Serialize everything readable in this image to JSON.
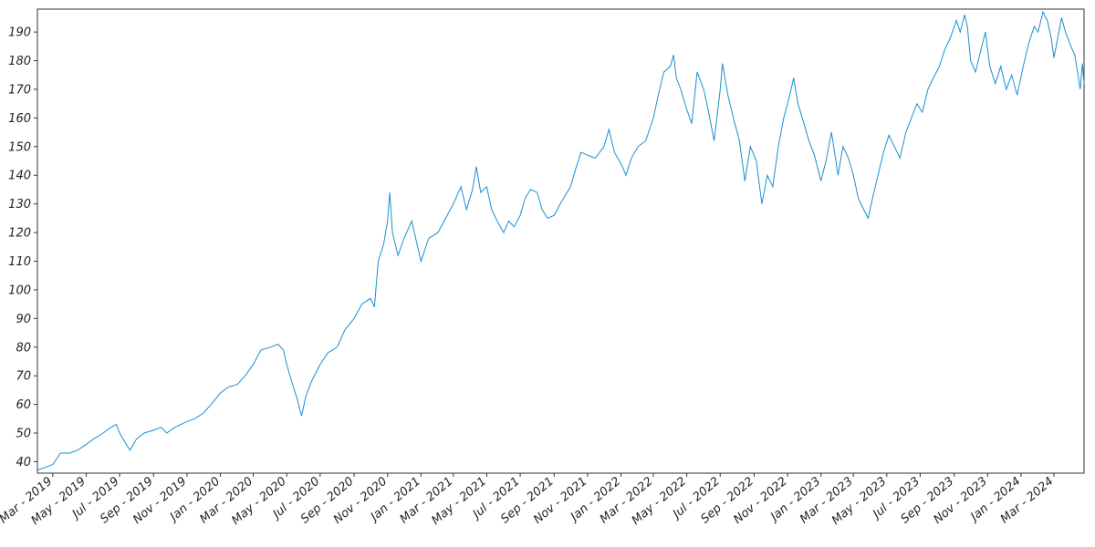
{
  "chart_data": {
    "type": "line",
    "title": "",
    "xlabel": "",
    "ylabel": "",
    "grid": false,
    "legend": "none",
    "ylim": [
      36,
      198
    ],
    "xlim": [
      "2019-02-01",
      "2024-04-25"
    ],
    "y_ticks": [
      40,
      50,
      60,
      70,
      80,
      90,
      100,
      110,
      120,
      130,
      140,
      150,
      160,
      170,
      180,
      190
    ],
    "x_ticks": [
      {
        "date": "2019-03-01",
        "label": "Mar - 2019"
      },
      {
        "date": "2019-05-01",
        "label": "May - 2019"
      },
      {
        "date": "2019-07-01",
        "label": "Jul - 2019"
      },
      {
        "date": "2019-09-01",
        "label": "Sep - 2019"
      },
      {
        "date": "2019-11-01",
        "label": "Nov - 2019"
      },
      {
        "date": "2020-01-01",
        "label": "Jan - 2020"
      },
      {
        "date": "2020-03-01",
        "label": "Mar - 2020"
      },
      {
        "date": "2020-05-01",
        "label": "May - 2020"
      },
      {
        "date": "2020-07-01",
        "label": "Jul - 2020"
      },
      {
        "date": "2020-09-01",
        "label": "Sep - 2020"
      },
      {
        "date": "2020-11-01",
        "label": "Nov - 2020"
      },
      {
        "date": "2021-01-01",
        "label": "Jan - 2021"
      },
      {
        "date": "2021-03-01",
        "label": "Mar - 2021"
      },
      {
        "date": "2021-05-01",
        "label": "May - 2021"
      },
      {
        "date": "2021-07-01",
        "label": "Jul - 2021"
      },
      {
        "date": "2021-09-01",
        "label": "Sep - 2021"
      },
      {
        "date": "2021-11-01",
        "label": "Nov - 2021"
      },
      {
        "date": "2022-01-01",
        "label": "Jan - 2022"
      },
      {
        "date": "2022-03-01",
        "label": "Mar - 2022"
      },
      {
        "date": "2022-05-01",
        "label": "May - 2022"
      },
      {
        "date": "2022-07-01",
        "label": "Jul - 2022"
      },
      {
        "date": "2022-09-01",
        "label": "Sep - 2022"
      },
      {
        "date": "2022-11-01",
        "label": "Nov - 2022"
      },
      {
        "date": "2023-01-01",
        "label": "Jan - 2023"
      },
      {
        "date": "2023-03-01",
        "label": "Mar - 2023"
      },
      {
        "date": "2023-05-01",
        "label": "May - 2023"
      },
      {
        "date": "2023-07-01",
        "label": "Jul - 2023"
      },
      {
        "date": "2023-09-01",
        "label": "Sep - 2023"
      },
      {
        "date": "2023-11-01",
        "label": "Nov - 2023"
      },
      {
        "date": "2024-01-01",
        "label": "Jan - 2024"
      },
      {
        "date": "2024-03-01",
        "label": "Mar - 2024"
      }
    ],
    "series": [
      {
        "color": "#1a8fd1",
        "points": [
          [
            "2019-02-01",
            37
          ],
          [
            "2019-02-15",
            38
          ],
          [
            "2019-03-01",
            39
          ],
          [
            "2019-03-15",
            43
          ],
          [
            "2019-04-01",
            43
          ],
          [
            "2019-04-15",
            44
          ],
          [
            "2019-05-01",
            46
          ],
          [
            "2019-05-15",
            48
          ],
          [
            "2019-06-01",
            50
          ],
          [
            "2019-06-15",
            52
          ],
          [
            "2019-06-25",
            53
          ],
          [
            "2019-07-01",
            50
          ],
          [
            "2019-07-10",
            47
          ],
          [
            "2019-07-20",
            44
          ],
          [
            "2019-08-01",
            48
          ],
          [
            "2019-08-15",
            50
          ],
          [
            "2019-09-01",
            51
          ],
          [
            "2019-09-15",
            52
          ],
          [
            "2019-09-25",
            50
          ],
          [
            "2019-10-10",
            52
          ],
          [
            "2019-11-01",
            54
          ],
          [
            "2019-11-15",
            55
          ],
          [
            "2019-12-01",
            57
          ],
          [
            "2019-12-15",
            60
          ],
          [
            "2020-01-01",
            64
          ],
          [
            "2020-01-15",
            66
          ],
          [
            "2020-02-01",
            67
          ],
          [
            "2020-02-15",
            70
          ],
          [
            "2020-03-01",
            74
          ],
          [
            "2020-03-15",
            79
          ],
          [
            "2020-04-01",
            80
          ],
          [
            "2020-04-15",
            81
          ],
          [
            "2020-04-25",
            79
          ],
          [
            "2020-05-01",
            74
          ],
          [
            "2020-05-10",
            68
          ],
          [
            "2020-05-20",
            62
          ],
          [
            "2020-05-28",
            56
          ],
          [
            "2020-06-05",
            63
          ],
          [
            "2020-06-15",
            68
          ],
          [
            "2020-07-01",
            74
          ],
          [
            "2020-07-15",
            78
          ],
          [
            "2020-08-01",
            80
          ],
          [
            "2020-08-15",
            86
          ],
          [
            "2020-09-01",
            90
          ],
          [
            "2020-09-15",
            95
          ],
          [
            "2020-10-01",
            97
          ],
          [
            "2020-10-08",
            94
          ],
          [
            "2020-10-15",
            110
          ],
          [
            "2020-10-25",
            116
          ],
          [
            "2020-11-01",
            124
          ],
          [
            "2020-11-05",
            134
          ],
          [
            "2020-11-10",
            120
          ],
          [
            "2020-11-20",
            112
          ],
          [
            "2020-12-01",
            118
          ],
          [
            "2020-12-15",
            124
          ],
          [
            "2021-01-01",
            110
          ],
          [
            "2021-01-15",
            118
          ],
          [
            "2021-02-01",
            120
          ],
          [
            "2021-02-15",
            125
          ],
          [
            "2021-03-01",
            130
          ],
          [
            "2021-03-15",
            136
          ],
          [
            "2021-03-25",
            128
          ],
          [
            "2021-04-05",
            135
          ],
          [
            "2021-04-12",
            143
          ],
          [
            "2021-04-20",
            134
          ],
          [
            "2021-05-01",
            136
          ],
          [
            "2021-05-10",
            128
          ],
          [
            "2021-05-20",
            124
          ],
          [
            "2021-06-01",
            120
          ],
          [
            "2021-06-10",
            124
          ],
          [
            "2021-06-20",
            122
          ],
          [
            "2021-07-01",
            126
          ],
          [
            "2021-07-10",
            132
          ],
          [
            "2021-07-20",
            135
          ],
          [
            "2021-08-01",
            134
          ],
          [
            "2021-08-10",
            128
          ],
          [
            "2021-08-20",
            125
          ],
          [
            "2021-09-01",
            126
          ],
          [
            "2021-09-15",
            131
          ],
          [
            "2021-10-01",
            136
          ],
          [
            "2021-10-10",
            142
          ],
          [
            "2021-10-20",
            148
          ],
          [
            "2021-11-01",
            147
          ],
          [
            "2021-11-15",
            146
          ],
          [
            "2021-12-01",
            150
          ],
          [
            "2021-12-10",
            156
          ],
          [
            "2021-12-20",
            148
          ],
          [
            "2022-01-01",
            144
          ],
          [
            "2022-01-10",
            140
          ],
          [
            "2022-01-20",
            146
          ],
          [
            "2022-02-01",
            150
          ],
          [
            "2022-02-15",
            152
          ],
          [
            "2022-03-01",
            160
          ],
          [
            "2022-03-10",
            168
          ],
          [
            "2022-03-20",
            176
          ],
          [
            "2022-04-01",
            178
          ],
          [
            "2022-04-07",
            182
          ],
          [
            "2022-04-12",
            174
          ],
          [
            "2022-04-20",
            170
          ],
          [
            "2022-05-01",
            163
          ],
          [
            "2022-05-10",
            158
          ],
          [
            "2022-05-20",
            176
          ],
          [
            "2022-06-01",
            170
          ],
          [
            "2022-06-10",
            162
          ],
          [
            "2022-06-20",
            152
          ],
          [
            "2022-07-01",
            170
          ],
          [
            "2022-07-05",
            179
          ],
          [
            "2022-07-15",
            168
          ],
          [
            "2022-07-25",
            160
          ],
          [
            "2022-08-05",
            152
          ],
          [
            "2022-08-15",
            138
          ],
          [
            "2022-08-25",
            150
          ],
          [
            "2022-09-05",
            145
          ],
          [
            "2022-09-15",
            130
          ],
          [
            "2022-09-25",
            140
          ],
          [
            "2022-10-05",
            136
          ],
          [
            "2022-10-15",
            150
          ],
          [
            "2022-10-25",
            160
          ],
          [
            "2022-11-05",
            168
          ],
          [
            "2022-11-12",
            174
          ],
          [
            "2022-11-20",
            165
          ],
          [
            "2022-12-01",
            158
          ],
          [
            "2022-12-10",
            152
          ],
          [
            "2022-12-20",
            147
          ],
          [
            "2023-01-01",
            138
          ],
          [
            "2023-01-10",
            145
          ],
          [
            "2023-01-20",
            155
          ],
          [
            "2023-02-01",
            140
          ],
          [
            "2023-02-10",
            150
          ],
          [
            "2023-02-20",
            146
          ],
          [
            "2023-03-01",
            140
          ],
          [
            "2023-03-10",
            132
          ],
          [
            "2023-03-20",
            128
          ],
          [
            "2023-03-28",
            125
          ],
          [
            "2023-04-05",
            132
          ],
          [
            "2023-04-15",
            140
          ],
          [
            "2023-04-25",
            148
          ],
          [
            "2023-05-05",
            154
          ],
          [
            "2023-05-15",
            150
          ],
          [
            "2023-05-25",
            146
          ],
          [
            "2023-06-05",
            155
          ],
          [
            "2023-06-15",
            160
          ],
          [
            "2023-06-25",
            165
          ],
          [
            "2023-07-05",
            162
          ],
          [
            "2023-07-15",
            170
          ],
          [
            "2023-07-25",
            174
          ],
          [
            "2023-08-05",
            178
          ],
          [
            "2023-08-15",
            184
          ],
          [
            "2023-08-25",
            188
          ],
          [
            "2023-09-05",
            194
          ],
          [
            "2023-09-12",
            190
          ],
          [
            "2023-09-20",
            196
          ],
          [
            "2023-09-25",
            192
          ],
          [
            "2023-10-01",
            180
          ],
          [
            "2023-10-10",
            176
          ],
          [
            "2023-10-20",
            184
          ],
          [
            "2023-10-28",
            190
          ],
          [
            "2023-11-05",
            178
          ],
          [
            "2023-11-15",
            172
          ],
          [
            "2023-11-25",
            178
          ],
          [
            "2023-12-05",
            170
          ],
          [
            "2023-12-15",
            175
          ],
          [
            "2023-12-25",
            168
          ],
          [
            "2024-01-05",
            178
          ],
          [
            "2024-01-15",
            186
          ],
          [
            "2024-01-25",
            192
          ],
          [
            "2024-02-01",
            190
          ],
          [
            "2024-02-10",
            197
          ],
          [
            "2024-02-18",
            194
          ],
          [
            "2024-02-25",
            188
          ],
          [
            "2024-03-01",
            181
          ],
          [
            "2024-03-08",
            188
          ],
          [
            "2024-03-15",
            195
          ],
          [
            "2024-03-22",
            190
          ],
          [
            "2024-04-01",
            185
          ],
          [
            "2024-04-08",
            182
          ],
          [
            "2024-04-14",
            175
          ],
          [
            "2024-04-18",
            170
          ],
          [
            "2024-04-22",
            179
          ],
          [
            "2024-04-25",
            172
          ]
        ]
      }
    ]
  }
}
